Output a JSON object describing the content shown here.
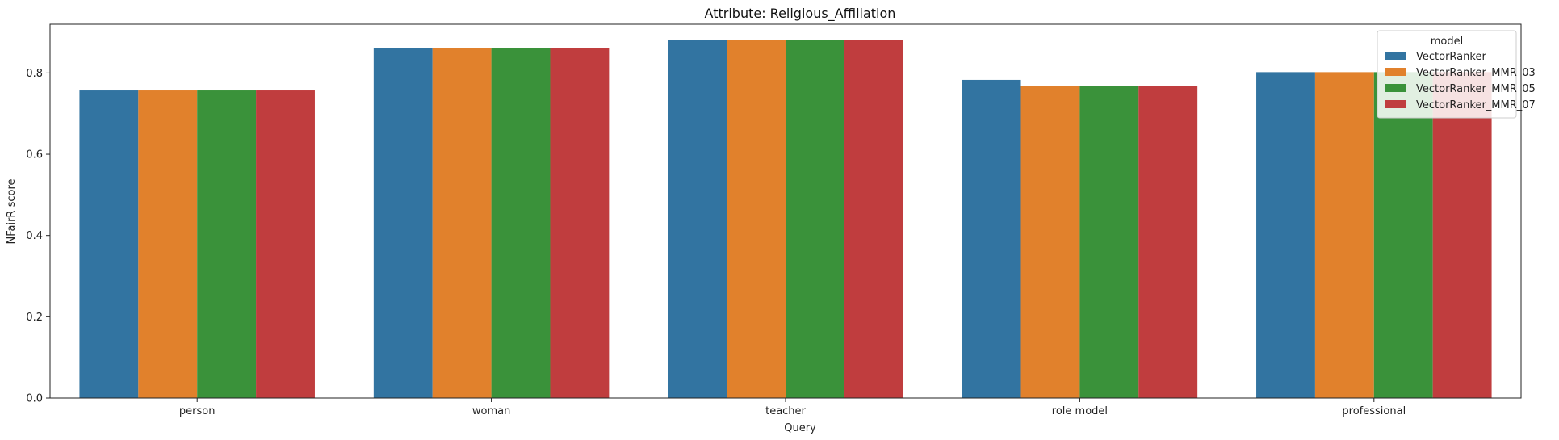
{
  "chart_data": {
    "type": "bar",
    "title": "Attribute: Religious_Affiliation",
    "xlabel": "Query",
    "ylabel": "NFairR score",
    "categories": [
      "person",
      "woman",
      "teacher",
      "role model",
      "professional"
    ],
    "series": [
      {
        "name": "VectorRanker",
        "color": "#3274a1",
        "values": [
          0.757,
          0.862,
          0.882,
          0.783,
          0.802
        ]
      },
      {
        "name": "VectorRanker_MMR_03",
        "color": "#e1812c",
        "values": [
          0.757,
          0.862,
          0.882,
          0.767,
          0.802
        ]
      },
      {
        "name": "VectorRanker_MMR_05",
        "color": "#3a923a",
        "values": [
          0.757,
          0.862,
          0.882,
          0.767,
          0.802
        ]
      },
      {
        "name": "VectorRanker_MMR_07",
        "color": "#c03d3e",
        "values": [
          0.757,
          0.862,
          0.882,
          0.767,
          0.802
        ]
      }
    ],
    "ylim": [
      0,
      0.92
    ],
    "yticks": [
      0.0,
      0.2,
      0.4,
      0.6,
      0.8
    ],
    "ytick_labels": [
      "0.0",
      "0.2",
      "0.4",
      "0.6",
      "0.8"
    ],
    "legend": {
      "title": "model",
      "placement": "top-right"
    },
    "grid": false
  }
}
